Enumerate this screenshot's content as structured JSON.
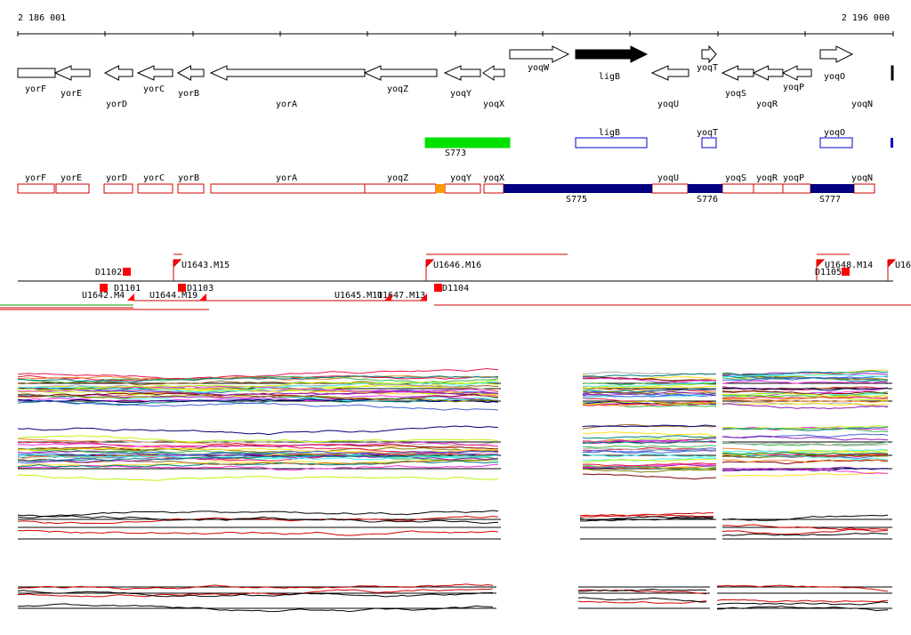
{
  "ruler": {
    "start": "2 186 001",
    "end": "2 196 000"
  },
  "genes": [
    "yorF",
    "yorE",
    "yorD",
    "yorC",
    "yorB",
    "yorA",
    "yoqZ",
    "yoqY",
    "yoqX",
    "yoqW",
    "ligB",
    "yoqU",
    "yoqT",
    "yoqS",
    "yoqR",
    "yoqP",
    "yoqO",
    "yoqN"
  ],
  "features": [
    "S773",
    "ligB",
    "yoqT",
    "yoqO"
  ],
  "transcripts": [
    "yorF",
    "yorE",
    "yorD",
    "yorC",
    "yorB",
    "yorA",
    "yoqZ",
    "yoqY",
    "yoqX",
    "yoqU",
    "yoqS",
    "yoqR",
    "yoqP",
    "yoqN",
    "S775",
    "S776",
    "S777"
  ],
  "sites": [
    "D1102",
    "U1643.M15",
    "U1646.M16",
    "U1648.M14",
    "U16",
    "D1105",
    "U1642.M4",
    "D1101",
    "U1644.M19",
    "D1103",
    "U1645.M11",
    "U1647.M13",
    "D1104"
  ]
}
